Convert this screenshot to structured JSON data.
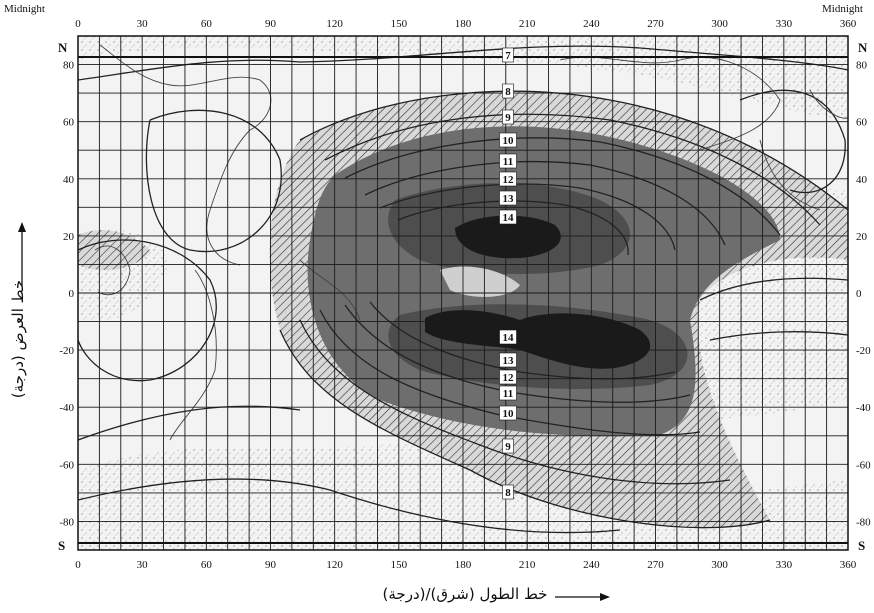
{
  "top_axis": {
    "left_label": "Midnight",
    "right_label": "Midnight",
    "ticks": [
      "0",
      "30",
      "60",
      "90",
      "120",
      "150",
      "180",
      "210",
      "240",
      "270",
      "300",
      "330",
      "360"
    ]
  },
  "bottom_axis": {
    "ticks": [
      "0",
      "30",
      "60",
      "90",
      "120",
      "150",
      "180",
      "210",
      "240",
      "270",
      "300",
      "330",
      "360"
    ],
    "title": "خط الطول (شرق)/(درجة)"
  },
  "left_axis": {
    "top_letter": "N",
    "bottom_letter": "S",
    "ticks": [
      "80",
      "60",
      "40",
      "20",
      "0",
      "-20",
      "-40",
      "-60",
      "-80"
    ],
    "title": "خط العرض (درجة)"
  },
  "right_axis": {
    "top_letter": "N",
    "bottom_letter": "S",
    "ticks": [
      "80",
      "60",
      "40",
      "20",
      "0",
      "-20",
      "-40",
      "-60",
      "-80"
    ]
  },
  "contour_labels_north": [
    "7",
    "8",
    "9",
    "10",
    "11",
    "12",
    "13",
    "14"
  ],
  "contour_labels_south": [
    "14",
    "13",
    "12",
    "11",
    "10",
    "9",
    "8"
  ],
  "colors": {
    "dark_core": "#1a1a1a",
    "mid_shade": "#6e6e6e",
    "hatch": "#333333",
    "stipple": "#9a9a9a"
  }
}
